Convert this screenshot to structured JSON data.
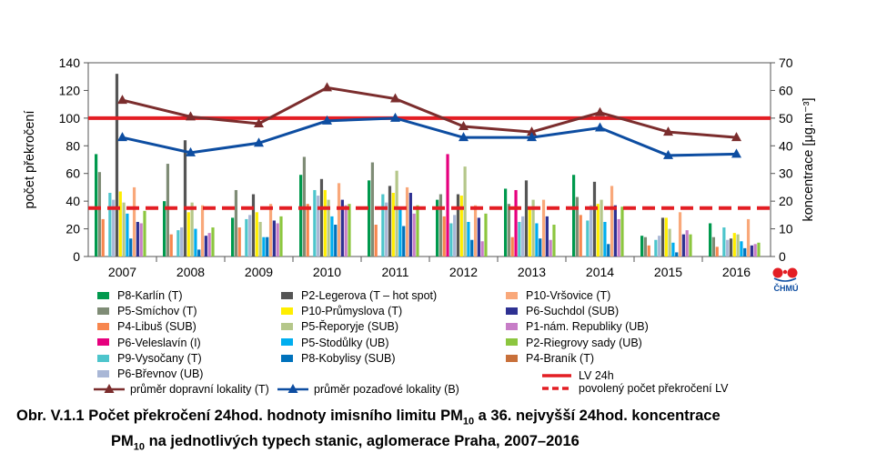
{
  "chart_data": {
    "type": "bar",
    "categories": [
      "2007",
      "2008",
      "2009",
      "2010",
      "2011",
      "2012",
      "2013",
      "2014",
      "2015",
      "2016"
    ],
    "ylim_left": [
      0,
      140
    ],
    "yticks_left": [
      0,
      20,
      40,
      60,
      80,
      100,
      120,
      140
    ],
    "ylim_right": [
      0,
      70
    ],
    "yticks_right": [
      0,
      10,
      20,
      30,
      40,
      50,
      60,
      70
    ],
    "ylabel_left": "počet překročení",
    "ylabel_right": "koncentrace [μg.m⁻³]",
    "series": [
      {
        "name": "P8-Karlín (T)",
        "color": "#00994d",
        "values": [
          74,
          40,
          28,
          59,
          55,
          41,
          49,
          59,
          15,
          24
        ]
      },
      {
        "name": "P5-Smíchov (T)",
        "color": "#7f8c76",
        "values": [
          61,
          67,
          48,
          72,
          68,
          45,
          38,
          43,
          14,
          14
        ]
      },
      {
        "name": "P4-Libuš (SUB)",
        "color": "#f7864e",
        "values": [
          27,
          16,
          21,
          38,
          23,
          29,
          14,
          30,
          8,
          7
        ]
      },
      {
        "name": "P6-Veleslavín (I)",
        "color": "#e6007e",
        "values": [
          0,
          0,
          0,
          0,
          0,
          74,
          48,
          0,
          0,
          0
        ]
      },
      {
        "name": "P9-Vysočany (T)",
        "color": "#4dc5cc",
        "values": [
          46,
          19,
          27,
          48,
          45,
          24,
          25,
          26,
          12,
          21
        ]
      },
      {
        "name": "P6-Břevnov (UB)",
        "color": "#a9b7d6",
        "values": [
          41,
          21,
          30,
          44,
          39,
          30,
          29,
          37,
          15,
          12
        ]
      },
      {
        "name": "P2-Legerova (T – hot spot)",
        "color": "#555555",
        "values": [
          132,
          84,
          45,
          56,
          51,
          45,
          55,
          54,
          28,
          13
        ]
      },
      {
        "name": "P10-Průmyslova (T)",
        "color": "#ffee00",
        "values": [
          47,
          32,
          32,
          48,
          46,
          44,
          36,
          38,
          28,
          17
        ]
      },
      {
        "name": "P5-Řeporyje (SUB)",
        "color": "#b5c78a",
        "values": [
          39,
          39,
          25,
          41,
          62,
          65,
          41,
          41,
          20,
          16
        ]
      },
      {
        "name": "P5-Stodůlky (UB)",
        "color": "#00aeef",
        "values": [
          31,
          20,
          14,
          29,
          34,
          25,
          24,
          25,
          10,
          11
        ]
      },
      {
        "name": "P8-Kobylisy (SUB)",
        "color": "#0072bc",
        "values": [
          13,
          5,
          14,
          23,
          22,
          12,
          13,
          9,
          3,
          6
        ]
      },
      {
        "name": "P10-Vršovice (T)",
        "color": "#f9a87a",
        "values": [
          50,
          37,
          38,
          53,
          50,
          37,
          41,
          51,
          32,
          27
        ]
      },
      {
        "name": "P6-Suchdol (SUB)",
        "color": "#2e3192",
        "values": [
          25,
          15,
          26,
          41,
          46,
          28,
          29,
          37,
          16,
          8
        ]
      },
      {
        "name": "P1-nám. Republiky (UB)",
        "color": "#c77dc7",
        "values": [
          24,
          17,
          24,
          37,
          31,
          11,
          12,
          27,
          19,
          9
        ]
      },
      {
        "name": "P2-Riegrovy sady (UB)",
        "color": "#8cc63f",
        "values": [
          33,
          21,
          29,
          38,
          37,
          31,
          23,
          36,
          16,
          10
        ]
      },
      {
        "name": "P4-Braník (T)",
        "color": "#c8703a",
        "values": [
          0,
          0,
          0,
          0,
          0,
          0,
          0,
          0,
          0,
          0
        ]
      }
    ],
    "line_series": [
      {
        "name": "průměr dopravní lokality (T)",
        "color": "#7b2d2d",
        "axis": "right",
        "values": [
          56.5,
          50.5,
          48,
          61,
          57,
          47,
          45,
          52,
          45,
          43
        ]
      },
      {
        "name": "průměr pozaďové lokality (B)",
        "color": "#0d4da1",
        "axis": "right",
        "values": [
          43,
          37.5,
          41,
          49,
          50,
          43,
          43,
          46.5,
          36.5,
          37
        ]
      }
    ],
    "reference_lines": [
      {
        "name": "LV 24h",
        "color": "#e31e24",
        "axis": "right",
        "value": 50,
        "style": "solid"
      },
      {
        "name": "povolený počet překročení LV",
        "color": "#e31e24",
        "axis": "left",
        "value": 35,
        "style": "dashed"
      }
    ]
  },
  "legend_order": [
    [
      0,
      1,
      2,
      3,
      4,
      5
    ],
    [
      6,
      7,
      8,
      9,
      10
    ],
    [
      11,
      12,
      13,
      14,
      15
    ]
  ],
  "logo_text": "ČHMÚ",
  "caption": {
    "line1_a": "Obr. V.1.1  Počet překročení 24hod. hodnoty imisního limitu PM",
    "line1_sub": "10",
    "line1_b": " a 36. nejvyšší 24hod. koncentrace",
    "line2_a": "PM",
    "line2_sub": "10",
    "line2_b": " na jednotlivých typech stanic, aglomerace Praha, 2007–2016"
  }
}
